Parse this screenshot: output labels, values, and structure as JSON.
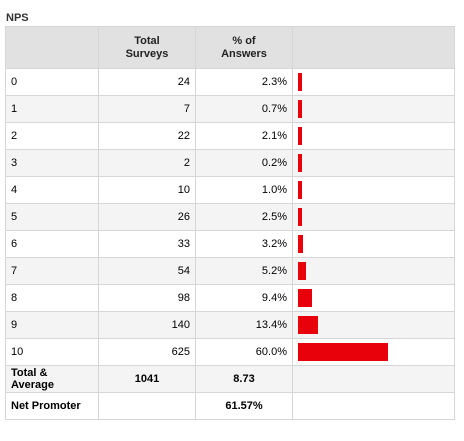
{
  "title": "NPS",
  "headers": [
    "",
    "Total\nSurveys",
    "% of\nAnswers",
    ""
  ],
  "rows": [
    {
      "score": "0",
      "total": "24",
      "pct": "2.3%",
      "pct_value": 2.3
    },
    {
      "score": "1",
      "total": "7",
      "pct": "0.7%",
      "pct_value": 0.7
    },
    {
      "score": "2",
      "total": "22",
      "pct": "2.1%",
      "pct_value": 2.1
    },
    {
      "score": "3",
      "total": "2",
      "pct": "0.2%",
      "pct_value": 0.2
    },
    {
      "score": "4",
      "total": "10",
      "pct": "1.0%",
      "pct_value": 1.0
    },
    {
      "score": "5",
      "total": "26",
      "pct": "2.5%",
      "pct_value": 2.5
    },
    {
      "score": "6",
      "total": "33",
      "pct": "3.2%",
      "pct_value": 3.2
    },
    {
      "score": "7",
      "total": "54",
      "pct": "5.2%",
      "pct_value": 5.2
    },
    {
      "score": "8",
      "total": "98",
      "pct": "9.4%",
      "pct_value": 9.4
    },
    {
      "score": "9",
      "total": "140",
      "pct": "13.4%",
      "pct_value": 13.4
    },
    {
      "score": "10",
      "total": "625",
      "pct": "60.0%",
      "pct_value": 60.0
    }
  ],
  "footer": {
    "total_label": "Total & Average",
    "total_surveys": "1041",
    "average": "8.73",
    "net_promoter_label": "Net Promoter",
    "net_promoter_value": "61.57%"
  },
  "colors": {
    "bar": "#e8000b"
  }
}
